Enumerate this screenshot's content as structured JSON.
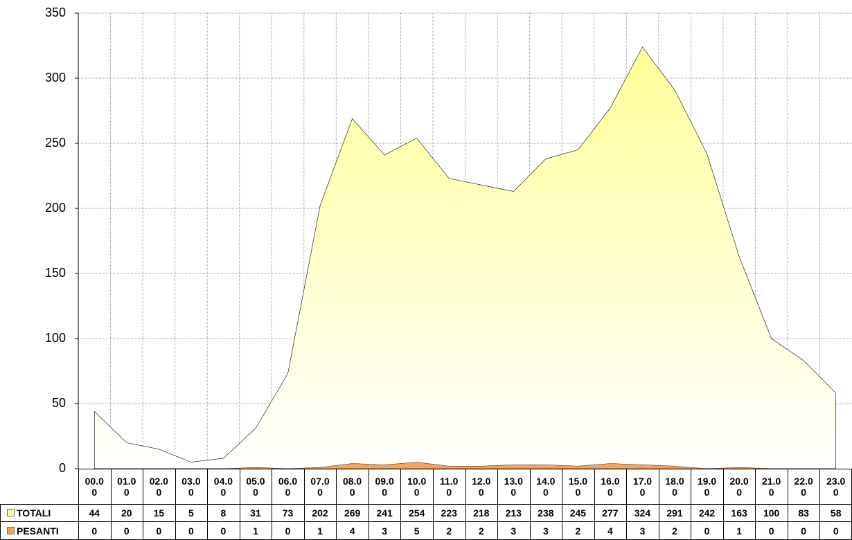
{
  "chart_data": {
    "type": "area",
    "categories": [
      "00.00",
      "01.00",
      "02.00",
      "03.00",
      "04.00",
      "05.00",
      "06.00",
      "07.00",
      "08.00",
      "09.00",
      "10.00",
      "11.00",
      "12.00",
      "13.00",
      "14.00",
      "15.00",
      "16.00",
      "17.00",
      "18.00",
      "19.00",
      "20.00",
      "21.00",
      "22.00",
      "23.00"
    ],
    "series": [
      {
        "name": "TOTALI",
        "color": "#ffff99",
        "values": [
          44,
          20,
          15,
          5,
          8,
          31,
          73,
          202,
          269,
          241,
          254,
          223,
          218,
          213,
          238,
          245,
          277,
          324,
          291,
          242,
          163,
          100,
          83,
          58
        ]
      },
      {
        "name": "PESANTI",
        "color": "#f4a460",
        "values": [
          0,
          0,
          0,
          0,
          0,
          1,
          0,
          1,
          4,
          3,
          5,
          2,
          2,
          3,
          3,
          2,
          4,
          3,
          2,
          0,
          1,
          0,
          0,
          0
        ]
      }
    ],
    "ylim": [
      0,
      350
    ],
    "yticks": [
      0,
      50,
      100,
      150,
      200,
      250,
      300,
      350
    ],
    "grid": true
  }
}
